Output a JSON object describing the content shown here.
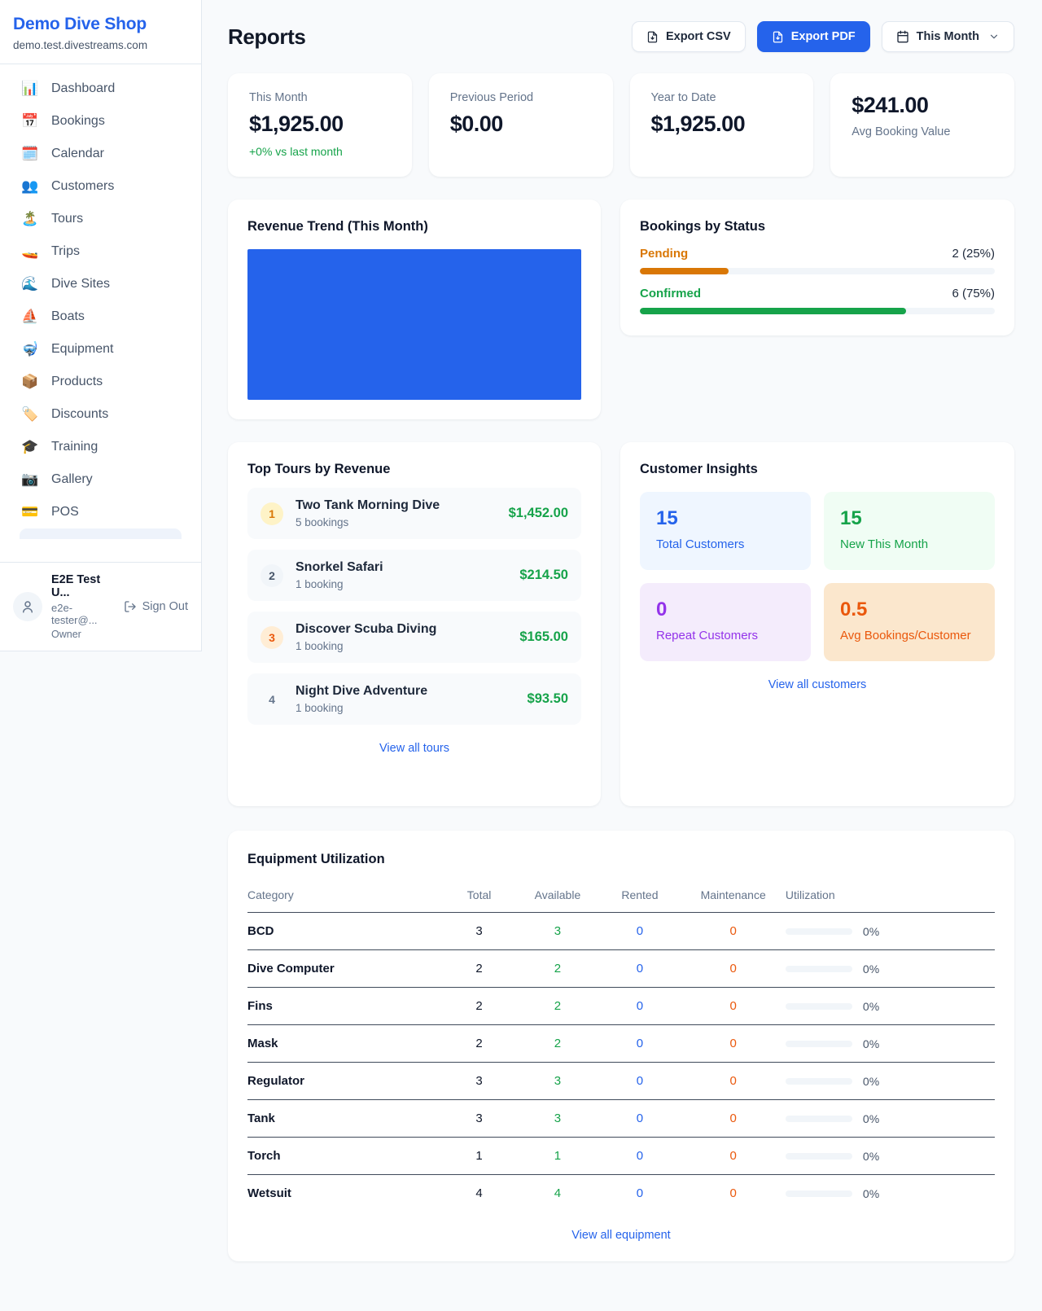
{
  "sidebar": {
    "shop_name": "Demo Dive Shop",
    "shop_domain": "demo.test.divestreams.com",
    "items": [
      {
        "icon": "📊",
        "label": "Dashboard"
      },
      {
        "icon": "📅",
        "label": "Bookings"
      },
      {
        "icon": "🗓️",
        "label": "Calendar"
      },
      {
        "icon": "👥",
        "label": "Customers"
      },
      {
        "icon": "🏝️",
        "label": "Tours"
      },
      {
        "icon": "🚤",
        "label": "Trips"
      },
      {
        "icon": "🌊",
        "label": "Dive Sites"
      },
      {
        "icon": "⛵",
        "label": "Boats"
      },
      {
        "icon": "🤿",
        "label": "Equipment"
      },
      {
        "icon": "📦",
        "label": "Products"
      },
      {
        "icon": "🏷️",
        "label": "Discounts"
      },
      {
        "icon": "🎓",
        "label": "Training"
      },
      {
        "icon": "📷",
        "label": "Gallery"
      },
      {
        "icon": "💳",
        "label": "POS"
      }
    ],
    "user": {
      "name": "E2E Test U...",
      "email": "e2e-tester@...",
      "role": "Owner",
      "sign_out_label": "Sign Out"
    }
  },
  "header": {
    "title": "Reports",
    "export_csv_label": "Export CSV",
    "export_pdf_label": "Export PDF",
    "period_label": "This Month"
  },
  "stats": {
    "cards": [
      {
        "label": "This Month",
        "value": "$1,925.00",
        "delta": "+0% vs last month"
      },
      {
        "label": "Previous Period",
        "value": "$0.00"
      },
      {
        "label": "Year to Date",
        "value": "$1,925.00"
      },
      {
        "label": "Avg Booking Value",
        "value": "$241.00"
      }
    ]
  },
  "revenue_trend": {
    "title": "Revenue Trend (This Month)",
    "bar_color": "#2563eb"
  },
  "bookings_by_status": {
    "title": "Bookings by Status",
    "rows": [
      {
        "label": "Pending",
        "value_text": "2 (25%)",
        "percent": 25,
        "color": "#d97706"
      },
      {
        "label": "Confirmed",
        "value_text": "6 (75%)",
        "percent": 75,
        "color": "#16a34a"
      }
    ]
  },
  "top_tours": {
    "title": "Top Tours by Revenue",
    "rows": [
      {
        "rank": "1",
        "name": "Two Tank Morning Dive",
        "bookings": "5 bookings",
        "revenue": "$1,452.00"
      },
      {
        "rank": "2",
        "name": "Snorkel Safari",
        "bookings": "1 booking",
        "revenue": "$214.50"
      },
      {
        "rank": "3",
        "name": "Discover Scuba Diving",
        "bookings": "1 booking",
        "revenue": "$165.00"
      },
      {
        "rank": "4",
        "name": "Night Dive Adventure",
        "bookings": "1 booking",
        "revenue": "$93.50"
      }
    ],
    "view_all_label": "View all tours"
  },
  "customer_insights": {
    "title": "Customer Insights",
    "tiles": [
      {
        "value": "15",
        "label": "Total Customers"
      },
      {
        "value": "15",
        "label": "New This Month"
      },
      {
        "value": "0",
        "label": "Repeat Customers"
      },
      {
        "value": "0.5",
        "label": "Avg Bookings/Customer"
      }
    ],
    "view_all_label": "View all customers"
  },
  "equipment": {
    "title": "Equipment Utilization",
    "columns": [
      "Category",
      "Total",
      "Available",
      "Rented",
      "Maintenance",
      "Utilization"
    ],
    "rows": [
      {
        "category": "BCD",
        "total": "3",
        "available": "3",
        "rented": "0",
        "maintenance": "0",
        "utilization": "0%",
        "percent": 0
      },
      {
        "category": "Dive Computer",
        "total": "2",
        "available": "2",
        "rented": "0",
        "maintenance": "0",
        "utilization": "0%",
        "percent": 0
      },
      {
        "category": "Fins",
        "total": "2",
        "available": "2",
        "rented": "0",
        "maintenance": "0",
        "utilization": "0%",
        "percent": 0
      },
      {
        "category": "Mask",
        "total": "2",
        "available": "2",
        "rented": "0",
        "maintenance": "0",
        "utilization": "0%",
        "percent": 0
      },
      {
        "category": "Regulator",
        "total": "3",
        "available": "3",
        "rented": "0",
        "maintenance": "0",
        "utilization": "0%",
        "percent": 0
      },
      {
        "category": "Tank",
        "total": "3",
        "available": "3",
        "rented": "0",
        "maintenance": "0",
        "utilization": "0%",
        "percent": 0
      },
      {
        "category": "Torch",
        "total": "1",
        "available": "1",
        "rented": "0",
        "maintenance": "0",
        "utilization": "0%",
        "percent": 0
      },
      {
        "category": "Wetsuit",
        "total": "4",
        "available": "4",
        "rented": "0",
        "maintenance": "0",
        "utilization": "0%",
        "percent": 0
      }
    ],
    "view_all_label": "View all equipment"
  }
}
